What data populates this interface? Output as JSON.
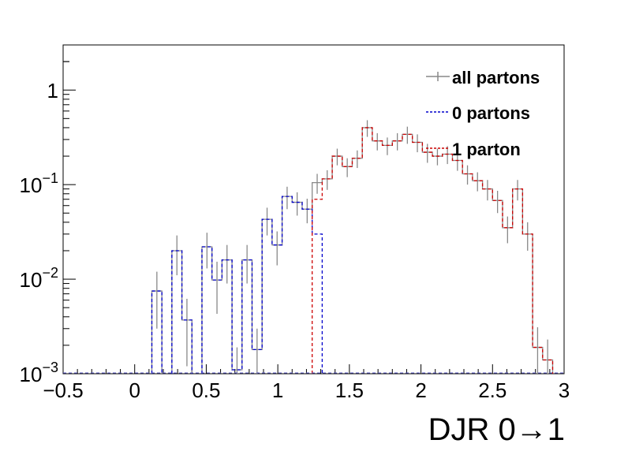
{
  "chart_data": {
    "type": "histogram",
    "xlabel": "DJR 0→1",
    "ylabel": "",
    "xlim": [
      -0.5,
      3
    ],
    "ylim": [
      0.001,
      3
    ],
    "yscale": "log",
    "x_ticks": [
      "−0.5",
      "0",
      "0.5",
      "1",
      "1.5",
      "2",
      "2.5",
      "3"
    ],
    "x_tick_values": [
      -0.5,
      0,
      0.5,
      1,
      1.5,
      2,
      2.5,
      3
    ],
    "y_ticks": [
      {
        "base": "10",
        "exp": "−3",
        "value": 0.001
      },
      {
        "base": "10",
        "exp": "−2",
        "value": 0.01
      },
      {
        "base": "10",
        "exp": "−1",
        "value": 0.1
      },
      {
        "base": "1",
        "exp": "",
        "value": 1
      }
    ],
    "bin_width": 0.07,
    "bin_start": -0.5,
    "legend_position": "top-right",
    "series": [
      {
        "name": "all partons",
        "color": "#888888",
        "line": "solid",
        "bins": [
          [
            0.12,
            0.0075,
            0.0045
          ],
          [
            0.26,
            0.02,
            0.009
          ],
          [
            0.33,
            0.0037,
            0.0025
          ],
          [
            0.47,
            0.022,
            0.009
          ],
          [
            0.54,
            0.0098,
            0.0055
          ],
          [
            0.61,
            0.016,
            0.007
          ],
          [
            0.68,
            0.0011,
            0.0008
          ],
          [
            0.75,
            0.016,
            0.007
          ],
          [
            0.82,
            0.0018,
            0.0012
          ],
          [
            0.89,
            0.043,
            0.014
          ],
          [
            0.96,
            0.023,
            0.009
          ],
          [
            1.03,
            0.075,
            0.02
          ],
          [
            1.1,
            0.065,
            0.018
          ],
          [
            1.17,
            0.055,
            0.016
          ],
          [
            1.24,
            0.105,
            0.025
          ],
          [
            1.31,
            0.115,
            0.027
          ],
          [
            1.38,
            0.2,
            0.04
          ],
          [
            1.45,
            0.155,
            0.035
          ],
          [
            1.52,
            0.19,
            0.04
          ],
          [
            1.59,
            0.4,
            0.08
          ],
          [
            1.66,
            0.29,
            0.06
          ],
          [
            1.73,
            0.26,
            0.055
          ],
          [
            1.8,
            0.29,
            0.06
          ],
          [
            1.87,
            0.34,
            0.07
          ],
          [
            1.94,
            0.28,
            0.06
          ],
          [
            2.01,
            0.22,
            0.05
          ],
          [
            2.08,
            0.2,
            0.04
          ],
          [
            2.15,
            0.21,
            0.045
          ],
          [
            2.22,
            0.18,
            0.04
          ],
          [
            2.29,
            0.13,
            0.03
          ],
          [
            2.36,
            0.11,
            0.025
          ],
          [
            2.43,
            0.09,
            0.022
          ],
          [
            2.5,
            0.068,
            0.018
          ],
          [
            2.57,
            0.035,
            0.011
          ],
          [
            2.64,
            0.09,
            0.022
          ],
          [
            2.71,
            0.03,
            0.01
          ],
          [
            2.78,
            0.0019,
            0.0012
          ],
          [
            2.85,
            0.0014,
            0.0009
          ]
        ]
      },
      {
        "name": "0 partons",
        "color": "#0000cc",
        "line": "dashed",
        "bins": [
          [
            0.12,
            0.0075
          ],
          [
            0.26,
            0.02
          ],
          [
            0.33,
            0.0037
          ],
          [
            0.47,
            0.022
          ],
          [
            0.54,
            0.0098
          ],
          [
            0.61,
            0.016
          ],
          [
            0.68,
            0.0011
          ],
          [
            0.75,
            0.016
          ],
          [
            0.82,
            0.0018
          ],
          [
            0.89,
            0.043
          ],
          [
            0.96,
            0.023
          ],
          [
            1.03,
            0.075
          ],
          [
            1.1,
            0.065
          ],
          [
            1.17,
            0.055
          ],
          [
            1.24,
            0.03
          ]
        ]
      },
      {
        "name": "1 parton",
        "color": "#cc0000",
        "line": "dashed",
        "bins": [
          [
            1.24,
            0.07
          ],
          [
            1.31,
            0.115
          ],
          [
            1.38,
            0.2
          ],
          [
            1.45,
            0.155
          ],
          [
            1.52,
            0.19
          ],
          [
            1.59,
            0.4
          ],
          [
            1.66,
            0.29
          ],
          [
            1.73,
            0.26
          ],
          [
            1.8,
            0.29
          ],
          [
            1.87,
            0.34
          ],
          [
            1.94,
            0.28
          ],
          [
            2.01,
            0.22
          ],
          [
            2.08,
            0.2
          ],
          [
            2.15,
            0.21
          ],
          [
            2.22,
            0.18
          ],
          [
            2.29,
            0.13
          ],
          [
            2.36,
            0.11
          ],
          [
            2.43,
            0.09
          ],
          [
            2.5,
            0.068
          ],
          [
            2.57,
            0.035
          ],
          [
            2.64,
            0.09
          ],
          [
            2.71,
            0.03
          ],
          [
            2.78,
            0.0019
          ],
          [
            2.85,
            0.0014
          ]
        ]
      }
    ]
  }
}
